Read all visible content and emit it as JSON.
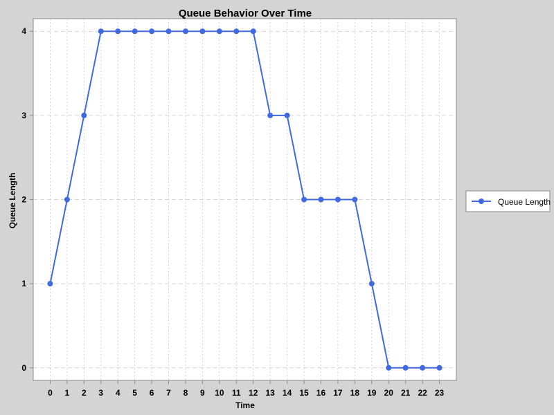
{
  "chart_data": {
    "type": "line",
    "title": "Queue Behavior Over Time",
    "xlabel": "Time",
    "ylabel": "Queue Length",
    "x": [
      0,
      1,
      2,
      3,
      4,
      5,
      6,
      7,
      8,
      9,
      10,
      11,
      12,
      13,
      14,
      15,
      16,
      17,
      18,
      19,
      20,
      21,
      22,
      23
    ],
    "series": [
      {
        "name": "Queue Length",
        "values": [
          1,
          2,
          3,
          4,
          4,
          4,
          4,
          4,
          4,
          4,
          4,
          4,
          4,
          3,
          3,
          2,
          2,
          2,
          2,
          1,
          0,
          0,
          0,
          0
        ],
        "color": "#4169e1"
      }
    ],
    "xlim": [
      -1,
      24
    ],
    "ylim": [
      -0.15,
      4.15
    ],
    "yticks": [
      0,
      1,
      2,
      3,
      4
    ],
    "grid": true,
    "legend_position": "right"
  }
}
